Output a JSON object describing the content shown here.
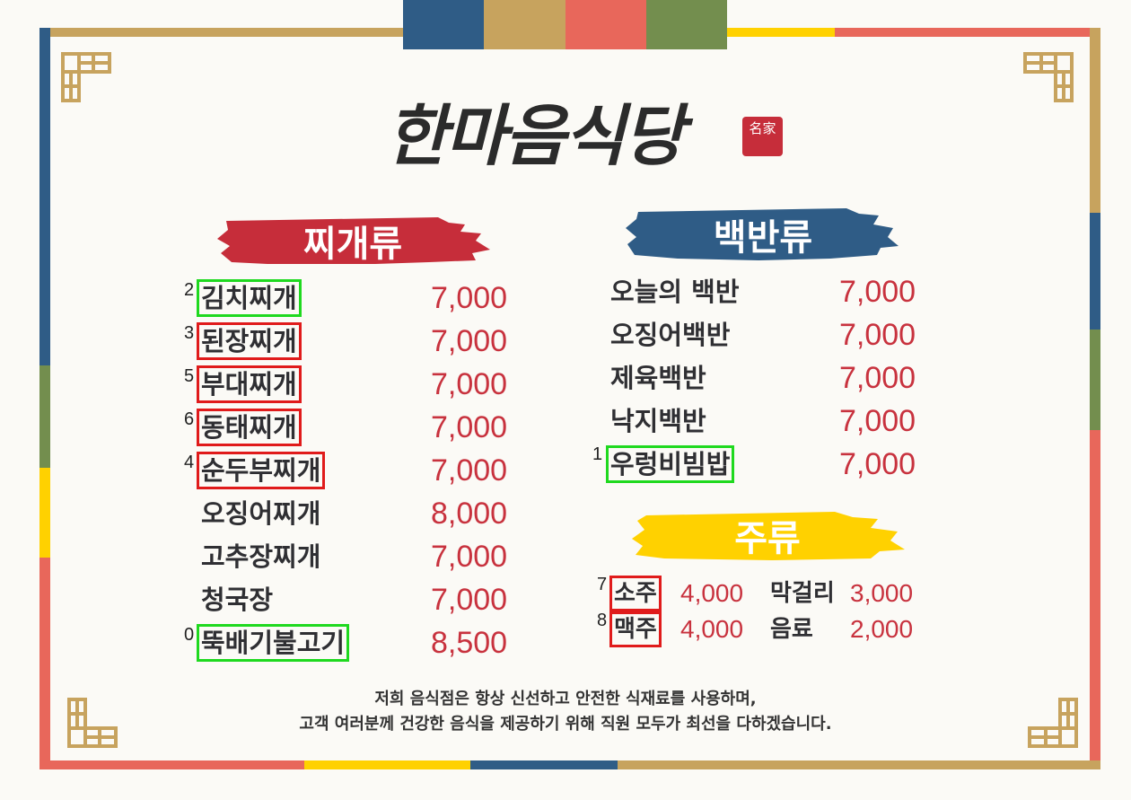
{
  "restaurant": {
    "name": "한마음식당",
    "seal": "名家"
  },
  "colors": {
    "blue": "#2f5c86",
    "gold": "#c7a35e",
    "coral": "#e8675b",
    "green": "#738e4e",
    "yellow": "#ffd100",
    "red": "#c62d3a",
    "price": "#c8323e"
  },
  "sections": {
    "stew": {
      "title": "찌개류",
      "items": [
        {
          "label": "2",
          "name": "김치찌개",
          "price": "7,000"
        },
        {
          "label": "3",
          "name": "된장찌개",
          "price": "7,000"
        },
        {
          "label": "5",
          "name": "부대찌개",
          "price": "7,000"
        },
        {
          "label": "6",
          "name": "동태찌개",
          "price": "7,000"
        },
        {
          "label": "4",
          "name": "순두부찌개",
          "price": "7,000"
        },
        {
          "label": "",
          "name": "오징어찌개",
          "price": "8,000"
        },
        {
          "label": "",
          "name": "고추장찌개",
          "price": "7,000"
        },
        {
          "label": "",
          "name": "청국장",
          "price": "7,000"
        },
        {
          "label": "0",
          "name": "뚝배기불고기",
          "price": "8,500"
        }
      ]
    },
    "baekban": {
      "title": "백반류",
      "items": [
        {
          "label": "",
          "name": "오늘의 백반",
          "price": "7,000"
        },
        {
          "label": "",
          "name": "오징어백반",
          "price": "7,000"
        },
        {
          "label": "",
          "name": "제육백반",
          "price": "7,000"
        },
        {
          "label": "",
          "name": "낙지백반",
          "price": "7,000"
        },
        {
          "label": "1",
          "name": "우렁비빔밥",
          "price": "7,000"
        }
      ]
    },
    "drinks": {
      "title": "주류",
      "items": [
        {
          "label": "7",
          "name": "소주",
          "price": "4,000"
        },
        {
          "label": "",
          "name": "막걸리",
          "price": "3,000"
        },
        {
          "label": "8",
          "name": "맥주",
          "price": "4,000"
        },
        {
          "label": "",
          "name": "음료",
          "price": "2,000"
        }
      ]
    }
  },
  "footer": {
    "line1": "저희 음식점은 항상 신선하고 안전한 식재료를 사용하며,",
    "line2": "고객 여러분께 건강한 음식을 제공하기 위해 직원 모두가 최선을 다하겠습니다."
  }
}
